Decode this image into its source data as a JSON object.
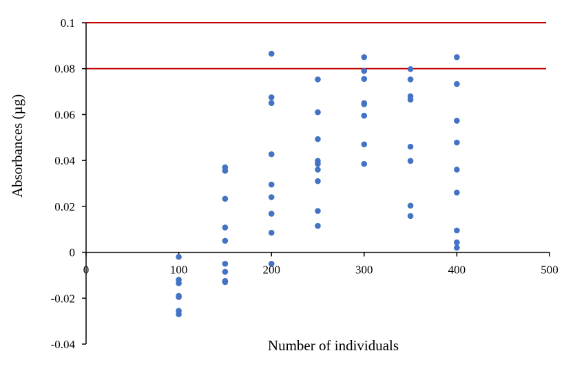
{
  "chart_data": {
    "type": "scatter",
    "xlabel": "Number of individuals",
    "ylabel": "Absorbances (µg)",
    "xlim": [
      0,
      500
    ],
    "ylim": [
      -0.04,
      0.1
    ],
    "x_ticks": [
      0,
      100,
      200,
      300,
      400,
      500
    ],
    "x_tick_labels": [
      "0",
      "100",
      "200",
      "300",
      "400",
      "500"
    ],
    "y_ticks": [
      -0.04,
      -0.02,
      0,
      0.02,
      0.04,
      0.06,
      0.08,
      0.1
    ],
    "y_tick_labels": [
      "-0.04",
      "-0.02",
      "0",
      "0.02",
      "0.04",
      "0.06",
      "0.08",
      "0.1"
    ],
    "grid": false,
    "legend": "none",
    "reference_lines": [
      {
        "y": 0.1,
        "color": "#C00000"
      },
      {
        "y": 0.08,
        "color": "#C00000"
      }
    ],
    "series": [
      {
        "color": "#4472C4",
        "points": [
          [
            100,
            -0.002
          ],
          [
            100,
            -0.012
          ],
          [
            100,
            -0.0135
          ],
          [
            100,
            -0.019
          ],
          [
            100,
            -0.0195
          ],
          [
            100,
            -0.0255
          ],
          [
            100,
            -0.027
          ],
          [
            150,
            0.037
          ],
          [
            150,
            0.0355
          ],
          [
            150,
            0.0233
          ],
          [
            150,
            0.0108
          ],
          [
            150,
            0.005
          ],
          [
            150,
            -0.005
          ],
          [
            150,
            -0.0085
          ],
          [
            150,
            -0.0125
          ],
          [
            150,
            -0.013
          ],
          [
            200,
            0.0865
          ],
          [
            200,
            0.0675
          ],
          [
            200,
            0.065
          ],
          [
            200,
            0.0427
          ],
          [
            200,
            0.0295
          ],
          [
            200,
            0.024
          ],
          [
            200,
            0.0168
          ],
          [
            200,
            0.0085
          ],
          [
            200,
            -0.005
          ],
          [
            250,
            0.0753
          ],
          [
            250,
            0.061
          ],
          [
            250,
            0.0493
          ],
          [
            250,
            0.0398
          ],
          [
            250,
            0.0385
          ],
          [
            250,
            0.036
          ],
          [
            250,
            0.031
          ],
          [
            250,
            0.018
          ],
          [
            250,
            0.0115
          ],
          [
            300,
            0.085
          ],
          [
            300,
            0.079
          ],
          [
            300,
            0.0755
          ],
          [
            300,
            0.065
          ],
          [
            300,
            0.0645
          ],
          [
            300,
            0.0595
          ],
          [
            300,
            0.047
          ],
          [
            300,
            0.0385
          ],
          [
            350,
            0.0798
          ],
          [
            350,
            0.0753
          ],
          [
            350,
            0.068
          ],
          [
            350,
            0.0665
          ],
          [
            350,
            0.046
          ],
          [
            350,
            0.0398
          ],
          [
            350,
            0.0203
          ],
          [
            350,
            0.0158
          ],
          [
            400,
            0.085
          ],
          [
            400,
            0.0733
          ],
          [
            400,
            0.0573
          ],
          [
            400,
            0.0478
          ],
          [
            400,
            0.036
          ],
          [
            400,
            0.026
          ],
          [
            400,
            0.0095
          ],
          [
            400,
            0.0043
          ],
          [
            400,
            0.002
          ]
        ]
      }
    ]
  }
}
